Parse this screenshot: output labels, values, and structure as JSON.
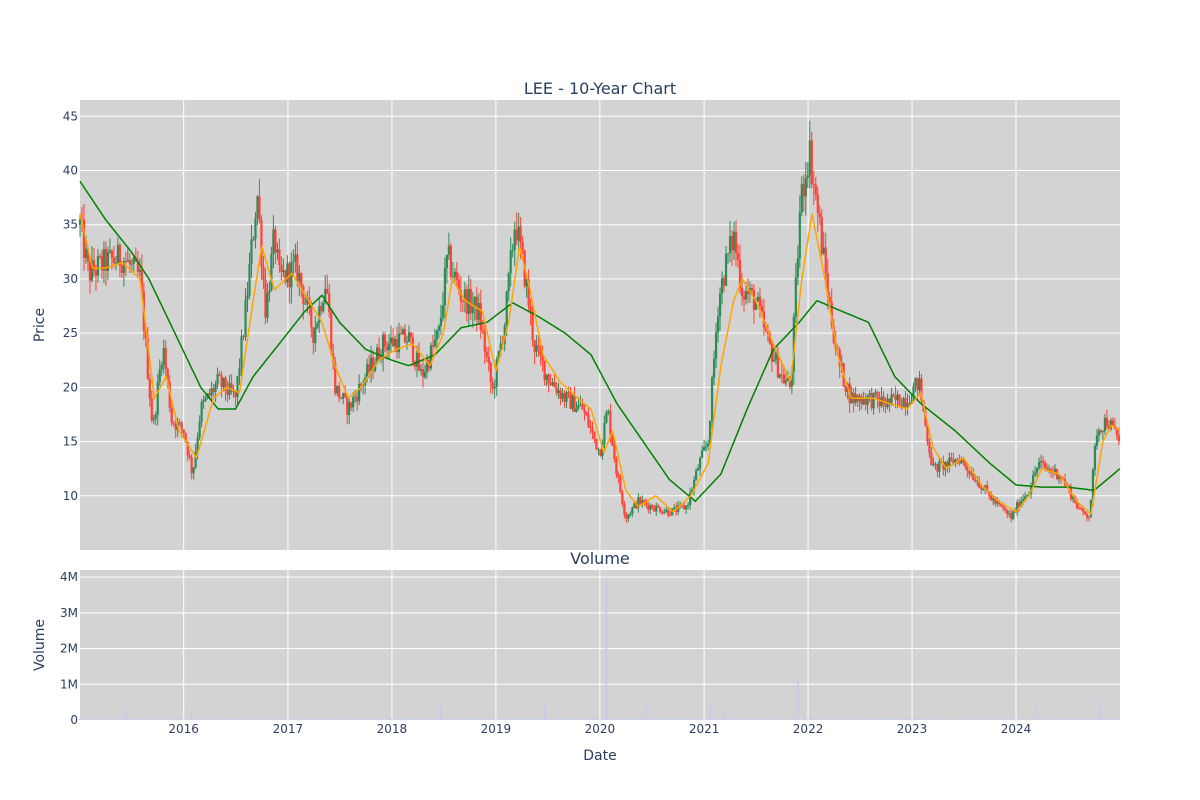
{
  "chart_data": [
    {
      "type": "candlestick",
      "title": "LEE - 10-Year Chart",
      "xlabel": "",
      "ylabel": "Price",
      "x_range": [
        "2015-01-02",
        "2024-12-31"
      ],
      "ylim": [
        5,
        46.5
      ],
      "y_ticks": [
        10,
        15,
        20,
        25,
        30,
        35,
        40,
        45
      ],
      "grid": true,
      "colors": {
        "up": "#2e8b57",
        "down": "#ff4136",
        "ma_short": "#ffa500",
        "ma_long": "#008000",
        "plot_bg": "#d3d3d3"
      },
      "price_anchors": [
        [
          "2015-01-02",
          35
        ],
        [
          "2015-02-01",
          30.5
        ],
        [
          "2015-04-01",
          31.5
        ],
        [
          "2015-06-01",
          32
        ],
        [
          "2015-08-01",
          30
        ],
        [
          "2015-09-15",
          16
        ],
        [
          "2015-10-20",
          24
        ],
        [
          "2015-11-20",
          17
        ],
        [
          "2016-01-01",
          16
        ],
        [
          "2016-02-01",
          12
        ],
        [
          "2016-03-01",
          18
        ],
        [
          "2016-05-01",
          20.5
        ],
        [
          "2016-07-01",
          19
        ],
        [
          "2016-08-01",
          26
        ],
        [
          "2016-09-15",
          38
        ],
        [
          "2016-10-15",
          27
        ],
        [
          "2016-11-15",
          34
        ],
        [
          "2016-12-01",
          30
        ],
        [
          "2017-02-01",
          31
        ],
        [
          "2017-04-01",
          25
        ],
        [
          "2017-05-15",
          30
        ],
        [
          "2017-06-15",
          20
        ],
        [
          "2017-08-01",
          18
        ],
        [
          "2017-10-01",
          21
        ],
        [
          "2017-12-01",
          24
        ],
        [
          "2018-03-01",
          24.5
        ],
        [
          "2018-04-15",
          21
        ],
        [
          "2018-06-15",
          25
        ],
        [
          "2018-07-15",
          32
        ],
        [
          "2018-09-01",
          28.5
        ],
        [
          "2018-11-01",
          27
        ],
        [
          "2018-12-20",
          19.5
        ],
        [
          "2019-02-01",
          26
        ],
        [
          "2019-03-10",
          35.5
        ],
        [
          "2019-04-15",
          30
        ],
        [
          "2019-05-15",
          24
        ],
        [
          "2019-07-01",
          21
        ],
        [
          "2019-09-01",
          19
        ],
        [
          "2019-11-01",
          18
        ],
        [
          "2020-01-01",
          14
        ],
        [
          "2020-01-28",
          18
        ],
        [
          "2020-03-01",
          12
        ],
        [
          "2020-04-01",
          8
        ],
        [
          "2020-05-15",
          9.5
        ],
        [
          "2020-07-01",
          9
        ],
        [
          "2020-09-01",
          8.5
        ],
        [
          "2020-11-01",
          9
        ],
        [
          "2020-12-15",
          13
        ],
        [
          "2021-01-15",
          15
        ],
        [
          "2021-02-20",
          28
        ],
        [
          "2021-03-15",
          31
        ],
        [
          "2021-04-15",
          34
        ],
        [
          "2021-05-15",
          29
        ],
        [
          "2021-07-01",
          28
        ],
        [
          "2021-08-15",
          24
        ],
        [
          "2021-10-01",
          21
        ],
        [
          "2021-11-01",
          20
        ],
        [
          "2021-12-05",
          37
        ],
        [
          "2022-01-05",
          42
        ],
        [
          "2022-02-10",
          35
        ],
        [
          "2022-03-20",
          27
        ],
        [
          "2022-04-20",
          22
        ],
        [
          "2022-06-01",
          19
        ],
        [
          "2022-08-01",
          19
        ],
        [
          "2022-10-01",
          18.5
        ],
        [
          "2022-12-15",
          19
        ],
        [
          "2023-01-25",
          20.5
        ],
        [
          "2023-02-20",
          16
        ],
        [
          "2023-03-15",
          12.5
        ],
        [
          "2023-05-15",
          13
        ],
        [
          "2023-06-15",
          13.5
        ],
        [
          "2023-08-15",
          11.5
        ],
        [
          "2023-10-15",
          9.5
        ],
        [
          "2023-12-15",
          8
        ],
        [
          "2024-01-15",
          9.5
        ],
        [
          "2024-02-15",
          10.5
        ],
        [
          "2024-03-20",
          13
        ],
        [
          "2024-04-15",
          12.5
        ],
        [
          "2024-06-01",
          12
        ],
        [
          "2024-07-15",
          10
        ],
        [
          "2024-08-15",
          8.5
        ],
        [
          "2024-09-15",
          8.2
        ],
        [
          "2024-10-10",
          16
        ],
        [
          "2024-11-15",
          17
        ],
        [
          "2024-12-31",
          15
        ]
      ],
      "ma_short_anchors": [
        [
          "2015-01-02",
          36
        ],
        [
          "2015-02-15",
          31
        ],
        [
          "2015-04-01",
          31
        ],
        [
          "2015-06-01",
          31.5
        ],
        [
          "2015-08-01",
          30
        ],
        [
          "2015-09-20",
          19
        ],
        [
          "2015-11-01",
          21
        ],
        [
          "2015-12-15",
          16
        ],
        [
          "2016-02-15",
          13.5
        ],
        [
          "2016-04-15",
          19
        ],
        [
          "2016-06-01",
          20
        ],
        [
          "2016-07-15",
          19.5
        ],
        [
          "2016-09-01",
          28
        ],
        [
          "2016-10-01",
          33
        ],
        [
          "2016-11-15",
          29
        ],
        [
          "2017-01-15",
          30.5
        ],
        [
          "2017-03-15",
          28
        ],
        [
          "2017-05-01",
          26
        ],
        [
          "2017-06-15",
          22
        ],
        [
          "2017-08-01",
          19
        ],
        [
          "2017-09-15",
          20
        ],
        [
          "2017-11-15",
          22.5
        ],
        [
          "2018-01-15",
          23.5
        ],
        [
          "2018-03-15",
          24
        ],
        [
          "2018-05-15",
          22
        ],
        [
          "2018-07-01",
          25
        ],
        [
          "2018-08-01",
          30
        ],
        [
          "2018-09-15",
          28
        ],
        [
          "2018-11-15",
          27
        ],
        [
          "2019-01-01",
          21.5
        ],
        [
          "2019-02-15",
          26
        ],
        [
          "2019-03-25",
          33
        ],
        [
          "2019-05-01",
          29
        ],
        [
          "2019-06-15",
          23
        ],
        [
          "2019-08-15",
          20.5
        ],
        [
          "2019-10-15",
          19
        ],
        [
          "2019-12-01",
          18
        ],
        [
          "2020-01-15",
          14
        ],
        [
          "2020-02-15",
          16
        ],
        [
          "2020-04-01",
          10.5
        ],
        [
          "2020-05-15",
          9
        ],
        [
          "2020-07-15",
          10
        ],
        [
          "2020-09-15",
          8.5
        ],
        [
          "2020-11-15",
          10
        ],
        [
          "2021-01-15",
          13
        ],
        [
          "2021-03-01",
          22
        ],
        [
          "2021-04-15",
          28
        ],
        [
          "2021-05-15",
          30
        ],
        [
          "2021-07-01",
          28
        ],
        [
          "2021-09-01",
          24
        ],
        [
          "2021-11-01",
          20.5
        ],
        [
          "2021-12-10",
          30
        ],
        [
          "2022-01-15",
          36
        ],
        [
          "2022-03-01",
          30
        ],
        [
          "2022-04-15",
          23
        ],
        [
          "2022-06-01",
          19
        ],
        [
          "2022-08-15",
          19
        ],
        [
          "2022-10-15",
          18.5
        ],
        [
          "2022-12-15",
          18
        ],
        [
          "2023-02-01",
          19.5
        ],
        [
          "2023-03-15",
          14.5
        ],
        [
          "2023-05-01",
          12.5
        ],
        [
          "2023-07-01",
          13.5
        ],
        [
          "2023-09-01",
          11
        ],
        [
          "2023-11-01",
          9.5
        ],
        [
          "2024-01-01",
          8.5
        ],
        [
          "2024-02-15",
          10
        ],
        [
          "2024-04-01",
          12.5
        ],
        [
          "2024-06-01",
          12
        ],
        [
          "2024-08-01",
          9.5
        ],
        [
          "2024-09-20",
          8.3
        ],
        [
          "2024-11-01",
          15
        ],
        [
          "2024-12-01",
          16.5
        ],
        [
          "2024-12-31",
          16
        ]
      ],
      "ma_long_anchors": [
        [
          "2015-01-02",
          39
        ],
        [
          "2015-04-01",
          35.5
        ],
        [
          "2015-07-01",
          32.5
        ],
        [
          "2015-09-01",
          30
        ],
        [
          "2015-12-01",
          25
        ],
        [
          "2016-03-01",
          20
        ],
        [
          "2016-05-01",
          18
        ],
        [
          "2016-07-01",
          18
        ],
        [
          "2016-09-01",
          21
        ],
        [
          "2016-12-01",
          24
        ],
        [
          "2017-03-01",
          27
        ],
        [
          "2017-05-01",
          28.5
        ],
        [
          "2017-07-01",
          26
        ],
        [
          "2017-10-01",
          23.5
        ],
        [
          "2018-01-01",
          22.5
        ],
        [
          "2018-03-01",
          22
        ],
        [
          "2018-06-01",
          23
        ],
        [
          "2018-09-01",
          25.5
        ],
        [
          "2018-12-01",
          26
        ],
        [
          "2019-03-01",
          27.8
        ],
        [
          "2019-06-01",
          26.5
        ],
        [
          "2019-09-01",
          25
        ],
        [
          "2019-12-01",
          23
        ],
        [
          "2020-03-01",
          18.5
        ],
        [
          "2020-06-01",
          15
        ],
        [
          "2020-09-01",
          11.5
        ],
        [
          "2020-12-01",
          9.5
        ],
        [
          "2021-03-01",
          12
        ],
        [
          "2021-06-01",
          18
        ],
        [
          "2021-09-01",
          23.5
        ],
        [
          "2021-12-01",
          26
        ],
        [
          "2022-02-01",
          28
        ],
        [
          "2022-05-01",
          27
        ],
        [
          "2022-08-01",
          26
        ],
        [
          "2022-11-01",
          21
        ],
        [
          "2023-02-01",
          18.5
        ],
        [
          "2023-06-01",
          16
        ],
        [
          "2023-10-01",
          13
        ],
        [
          "2024-01-01",
          11
        ],
        [
          "2024-04-01",
          10.8
        ],
        [
          "2024-07-01",
          10.8
        ],
        [
          "2024-10-01",
          10.5
        ],
        [
          "2024-12-31",
          12.5
        ]
      ],
      "volume_baseline": 30000,
      "volume_spikes": [
        [
          "2015-06-15",
          400000
        ],
        [
          "2016-01-29",
          350000
        ],
        [
          "2016-08-15",
          100000
        ],
        [
          "2017-05-15",
          80000
        ],
        [
          "2018-06-20",
          450000
        ],
        [
          "2019-06-21",
          550000
        ],
        [
          "2020-01-22",
          3950000
        ],
        [
          "2020-06-15",
          550000
        ],
        [
          "2021-01-25",
          400000
        ],
        [
          "2021-03-15",
          250000
        ],
        [
          "2021-11-29",
          1100000
        ],
        [
          "2021-12-20",
          250000
        ],
        [
          "2023-02-01",
          80000
        ],
        [
          "2024-03-15",
          400000
        ],
        [
          "2024-04-15",
          150000
        ],
        [
          "2024-10-15",
          570000
        ]
      ]
    },
    {
      "type": "bar",
      "title": "Volume",
      "xlabel": "Date",
      "ylabel": "Volume",
      "ylim": [
        0,
        4200000
      ],
      "y_ticks": [
        0,
        1000000,
        2000000,
        3000000,
        4000000
      ],
      "y_tick_labels": [
        "0",
        "1M",
        "2M",
        "3M",
        "4M"
      ],
      "x_ticks": [
        "2016-01-01",
        "2017-01-01",
        "2018-01-01",
        "2019-01-01",
        "2020-01-01",
        "2021-01-01",
        "2022-01-01",
        "2023-01-01",
        "2024-01-01"
      ],
      "x_tick_labels": [
        "2016",
        "2017",
        "2018",
        "2019",
        "2020",
        "2021",
        "2022",
        "2023",
        "2024"
      ],
      "grid": true,
      "colors": {
        "bar": "#c8cce8",
        "plot_bg": "#d3d3d3"
      }
    }
  ]
}
